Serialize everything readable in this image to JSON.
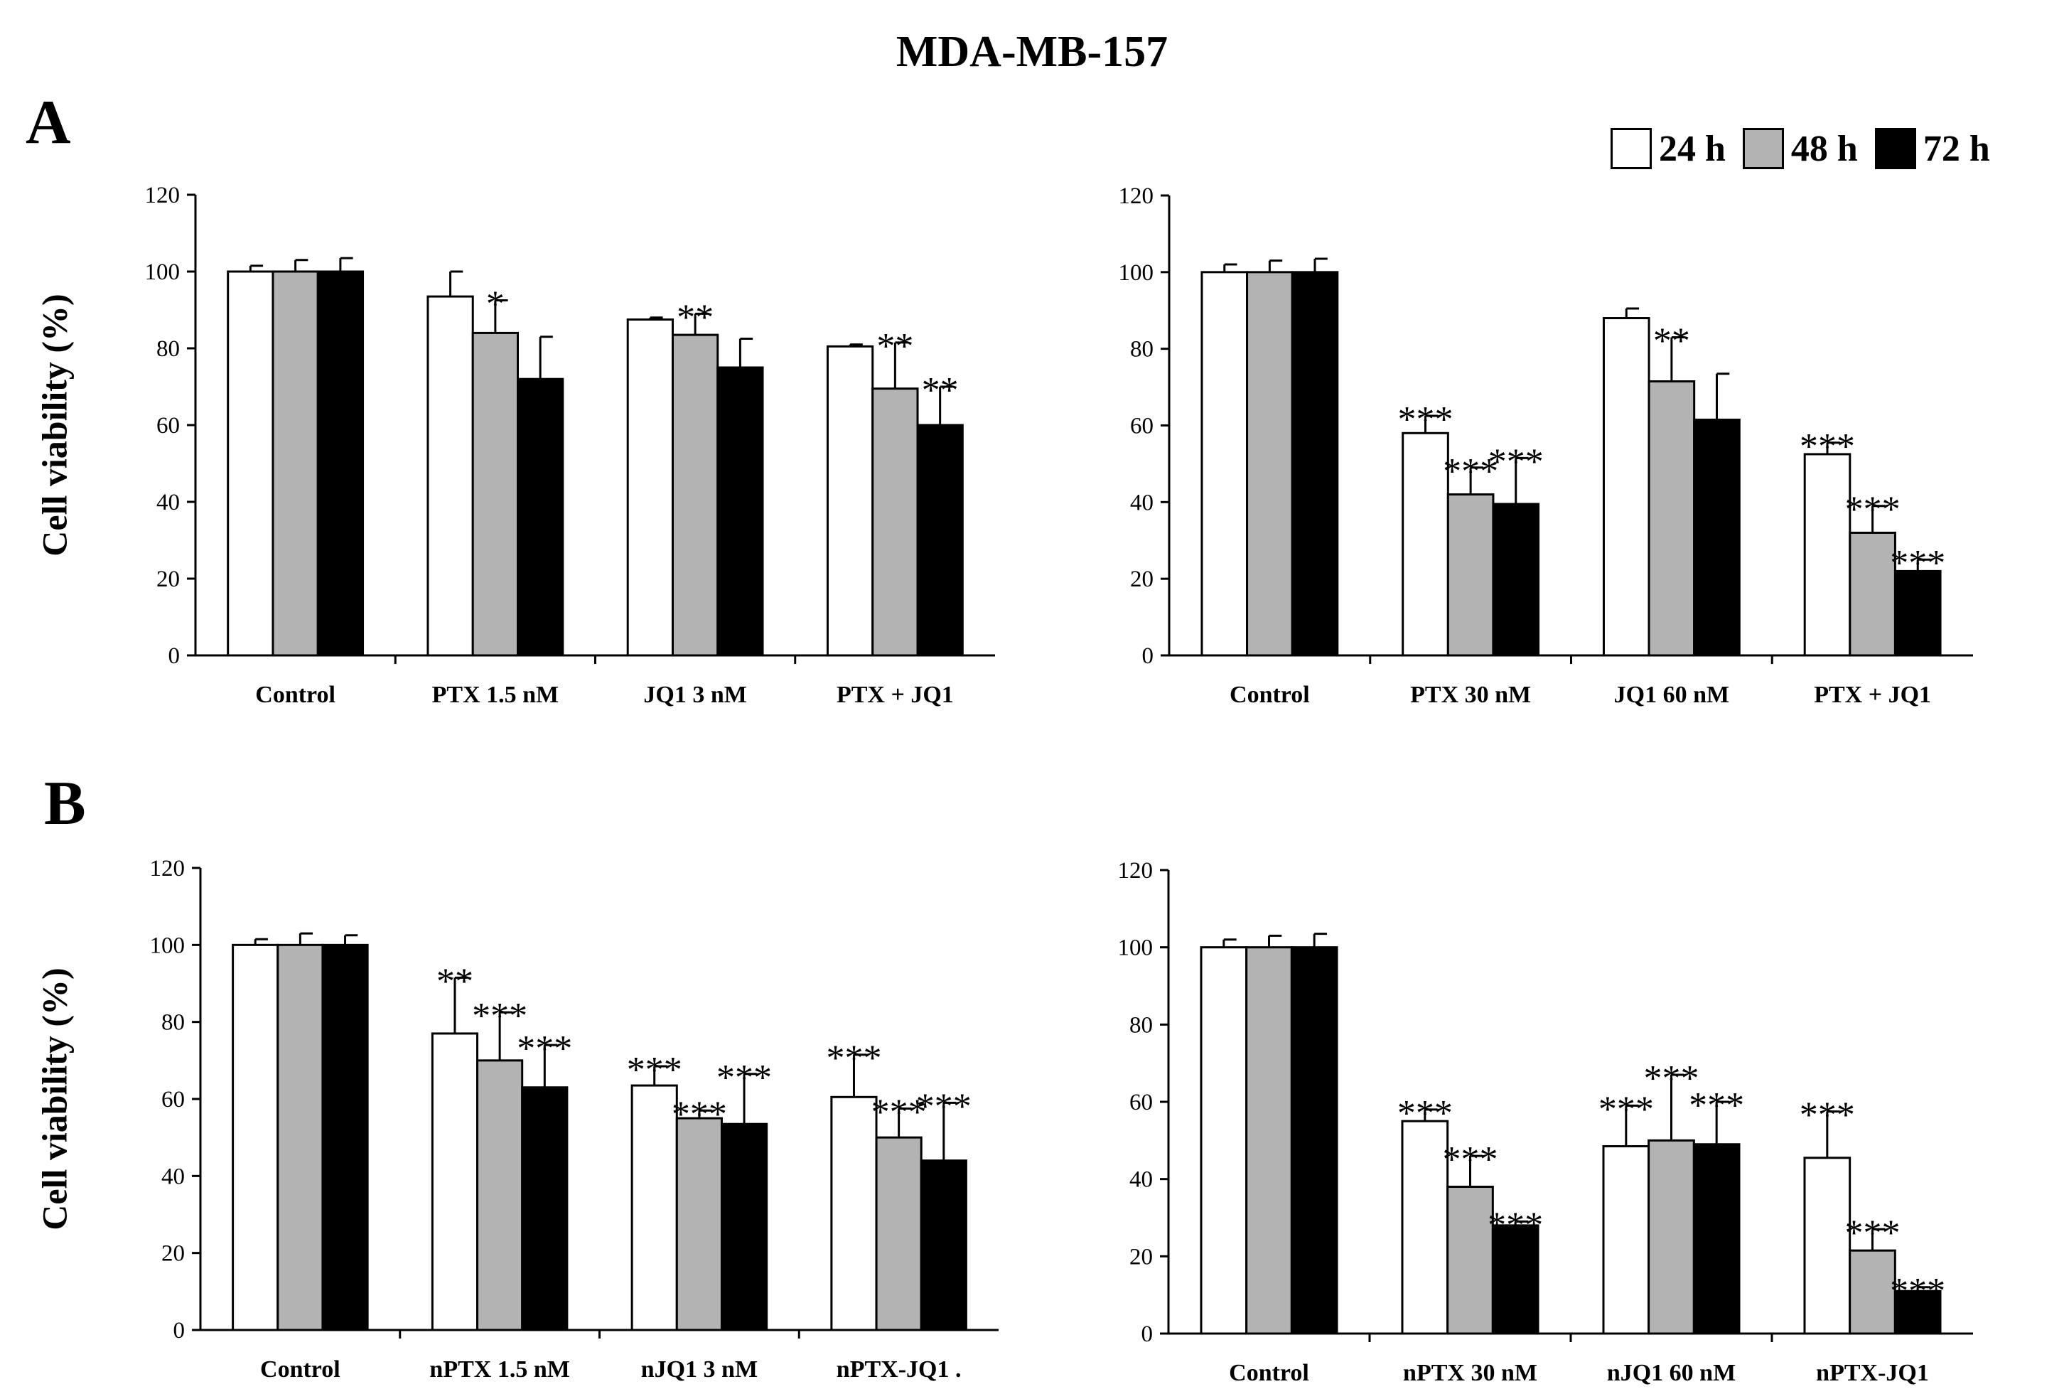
{
  "figure": {
    "title": "MDA-MB-157",
    "panel_a": "A",
    "panel_b": "B"
  },
  "legend": [
    {
      "label": "24 h",
      "color": "#ffffff"
    },
    {
      "label": "48 h",
      "color": "#b3b3b3"
    },
    {
      "label": "72 h",
      "color": "#000000"
    }
  ],
  "chart_data": [
    {
      "type": "bar",
      "panel": "A",
      "position": "left",
      "title": "",
      "xlabel": "",
      "ylabel": "Cell viability (%)",
      "ylim": [
        0,
        120
      ],
      "yticks": [
        0,
        20,
        40,
        60,
        80,
        100,
        120
      ],
      "categories": [
        "Control",
        "PTX  1.5 nM",
        "JQ1 3 nM",
        "PTX + JQ1"
      ],
      "series": [
        {
          "name": "24 h",
          "values": [
            100,
            93.5,
            87.5,
            80.5
          ],
          "errors": [
            1.5,
            6.5,
            0.5,
            0.5
          ],
          "significance": [
            "",
            "",
            "",
            ""
          ]
        },
        {
          "name": "48 h",
          "values": [
            100,
            84,
            83.5,
            69.5
          ],
          "errors": [
            3,
            8.5,
            5.5,
            12
          ],
          "significance": [
            "",
            "*",
            "**",
            "**"
          ]
        },
        {
          "name": "72 h",
          "values": [
            100,
            72,
            75,
            60
          ],
          "errors": [
            3.5,
            11,
            7.5,
            10
          ],
          "significance": [
            "",
            "",
            "",
            "**"
          ]
        }
      ]
    },
    {
      "type": "bar",
      "panel": "A",
      "position": "right",
      "title": "",
      "xlabel": "",
      "ylabel": "",
      "ylim": [
        0,
        120
      ],
      "yticks": [
        0,
        20,
        40,
        60,
        80,
        100,
        120
      ],
      "categories": [
        "Control",
        "PTX  30 nM",
        "JQ1 60 nM",
        "PTX + JQ1"
      ],
      "series": [
        {
          "name": "24 h",
          "values": [
            100,
            58,
            88,
            52.5
          ],
          "errors": [
            2,
            4.5,
            2.5,
            3
          ],
          "significance": [
            "",
            "***",
            "",
            "***"
          ]
        },
        {
          "name": "48 h",
          "values": [
            100,
            42,
            71.5,
            32
          ],
          "errors": [
            3,
            7,
            11.5,
            7
          ],
          "significance": [
            "",
            "***",
            "**",
            "***"
          ]
        },
        {
          "name": "72 h",
          "values": [
            100,
            39.5,
            61.5,
            22
          ],
          "errors": [
            3.5,
            12,
            12,
            3
          ],
          "significance": [
            "",
            "***",
            "",
            "***"
          ]
        }
      ]
    },
    {
      "type": "bar",
      "panel": "B",
      "position": "left",
      "title": "",
      "xlabel": "",
      "ylabel": "Cell viability (%)",
      "ylim": [
        0,
        120
      ],
      "yticks": [
        0,
        20,
        40,
        60,
        80,
        100,
        120
      ],
      "categories": [
        "Control",
        "nPTX  1.5 nM",
        "nJQ1 3 nM",
        "nPTX-JQ1 ."
      ],
      "series": [
        {
          "name": "24 h",
          "values": [
            100,
            77,
            63.5,
            60.5
          ],
          "errors": [
            1.5,
            14.5,
            5,
            11
          ],
          "significance": [
            "",
            "**",
            "***",
            "***"
          ]
        },
        {
          "name": "48 h",
          "values": [
            100,
            70,
            55,
            50
          ],
          "errors": [
            3,
            12.5,
            2,
            7.5
          ],
          "significance": [
            "",
            "***",
            "***",
            "***"
          ]
        },
        {
          "name": "72 h",
          "values": [
            100,
            63,
            53.5,
            44
          ],
          "errors": [
            2.5,
            11,
            13,
            15
          ],
          "significance": [
            "",
            "***",
            "***",
            "***"
          ]
        }
      ]
    },
    {
      "type": "bar",
      "panel": "B",
      "position": "right",
      "title": "",
      "xlabel": "",
      "ylabel": "",
      "ylim": [
        0,
        120
      ],
      "yticks": [
        0,
        20,
        40,
        60,
        80,
        100,
        120
      ],
      "categories": [
        "Control",
        "nPTX  30 nM",
        "nJQ1 60 nM",
        "nPTX-JQ1"
      ],
      "series": [
        {
          "name": "24 h",
          "values": [
            100,
            55,
            48.5,
            45.5
          ],
          "errors": [
            2,
            3,
            10.5,
            12
          ],
          "significance": [
            "",
            "***",
            "***",
            "***"
          ]
        },
        {
          "name": "48 h",
          "values": [
            100,
            38,
            50,
            21.5
          ],
          "errors": [
            3,
            8,
            17,
            5.5
          ],
          "significance": [
            "",
            "***",
            "***",
            "***"
          ]
        },
        {
          "name": "72 h",
          "values": [
            100,
            28,
            49,
            11
          ],
          "errors": [
            3.5,
            1,
            11,
            1
          ],
          "significance": [
            "",
            "***",
            "***",
            "***"
          ]
        }
      ]
    }
  ]
}
